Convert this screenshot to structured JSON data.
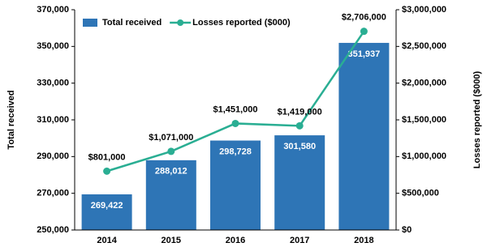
{
  "chart_data": {
    "type": "combo",
    "categories": [
      "2014",
      "2015",
      "2016",
      "2017",
      "2018"
    ],
    "series": [
      {
        "name": "Total received",
        "type": "bar",
        "color": "#2e75b6",
        "axis": "y",
        "values": [
          269422,
          288012,
          298728,
          301580,
          351937
        ],
        "value_labels": [
          "269,422",
          "288,012",
          "298,728",
          "301,580",
          "351,937"
        ]
      },
      {
        "name": "Losses reported ($000)",
        "type": "line",
        "color": "#2aae93",
        "axis": "y2",
        "values": [
          801000,
          1071000,
          1451000,
          1419000,
          2706000
        ],
        "value_labels": [
          "$801,000",
          "$1,071,000",
          "$1,451,000",
          "$1,419,000",
          "$2,706,000"
        ]
      }
    ],
    "ylabel": "Total received",
    "y2label": "Losses reported ($000)",
    "ylim": [
      250000,
      370000
    ],
    "yticks": [
      {
        "value": 250000,
        "label": "250,000"
      },
      {
        "value": 270000,
        "label": "270,000"
      },
      {
        "value": 290000,
        "label": "290,000"
      },
      {
        "value": 310000,
        "label": "310,000"
      },
      {
        "value": 330000,
        "label": "330,000"
      },
      {
        "value": 350000,
        "label": "350,000"
      },
      {
        "value": 370000,
        "label": "370,000"
      }
    ],
    "y2lim": [
      0,
      3000000
    ],
    "y2ticks": [
      {
        "value": 0,
        "label": "$0"
      },
      {
        "value": 500000,
        "label": "$500,000"
      },
      {
        "value": 1000000,
        "label": "$1,000,000"
      },
      {
        "value": 1500000,
        "label": "$1,500,000"
      },
      {
        "value": 2000000,
        "label": "$2,000,000"
      },
      {
        "value": 2500000,
        "label": "$2,500,000"
      },
      {
        "value": 3000000,
        "label": "$3,000,000"
      }
    ],
    "legend": "top-left"
  }
}
